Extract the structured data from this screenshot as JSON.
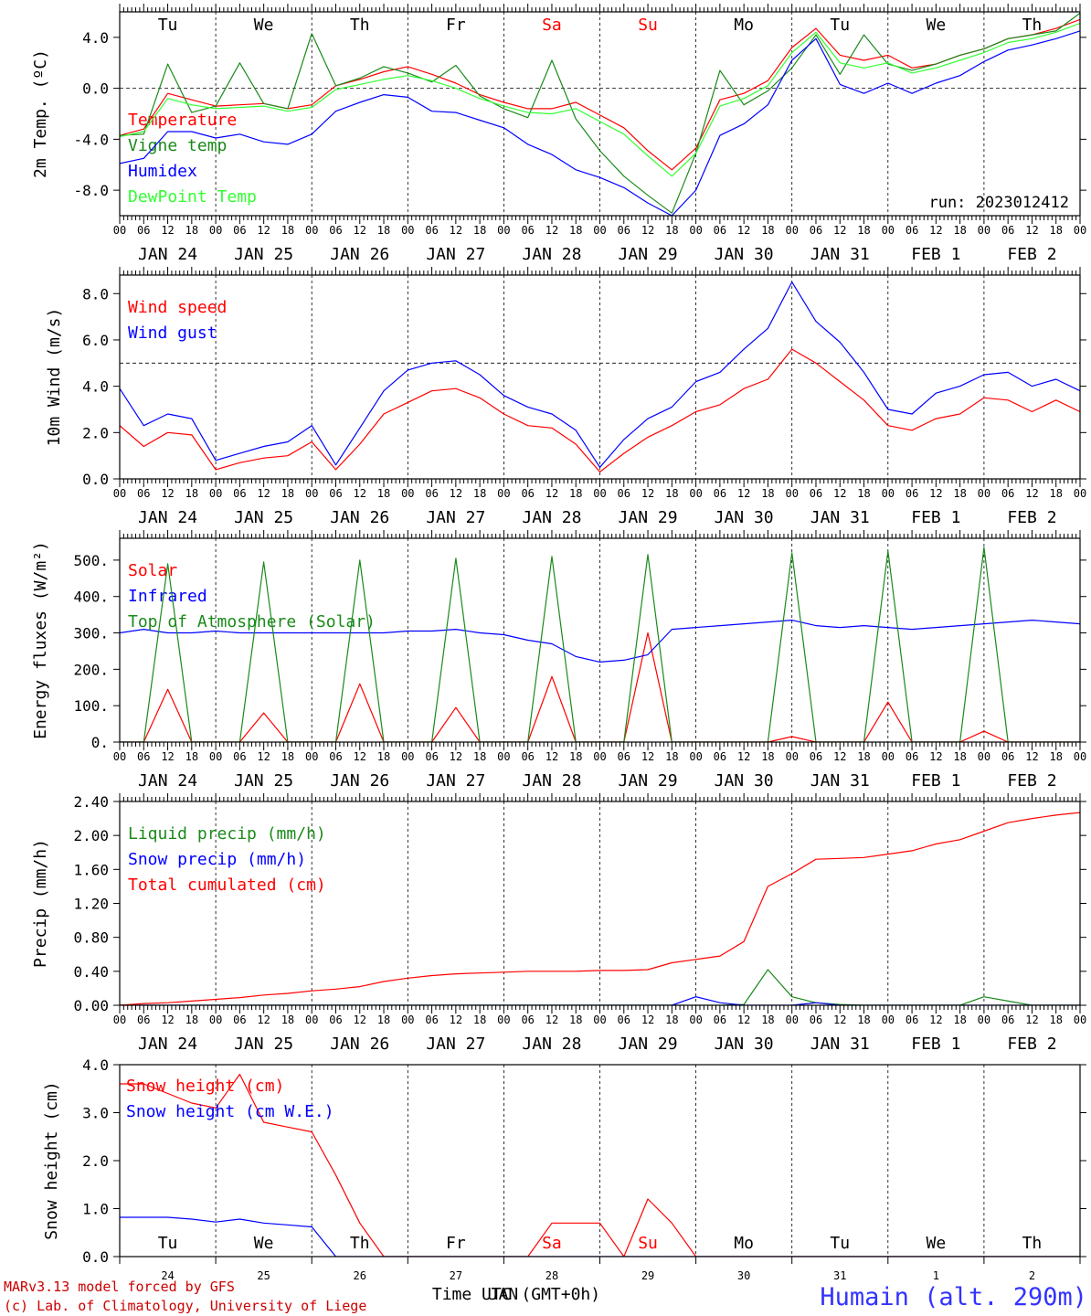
{
  "chart_data": [
    {
      "type": "line",
      "ylabel": "2m Temp. (ºC)",
      "ylim": [
        -10,
        6
      ],
      "yticks": [
        -8,
        -4,
        0,
        4
      ],
      "ytick_labels": [
        "-8.0",
        "-4.0",
        "0.0",
        "4.0"
      ],
      "hline": 0,
      "run_label": "run: 2023012412",
      "day_labels": [
        "Tu",
        "We",
        "Th",
        "Fr",
        "Sa",
        "Su",
        "Mo",
        "Tu",
        "We",
        "Th"
      ],
      "day_colors": [
        "#000000",
        "#000000",
        "#000000",
        "#000000",
        "#ff0000",
        "#ff0000",
        "#000000",
        "#000000",
        "#000000",
        "#000000"
      ],
      "x_hours": [
        0,
        6,
        12,
        18,
        24,
        30,
        36,
        42,
        48,
        54,
        60,
        66,
        72,
        78,
        84,
        90,
        96,
        102,
        108,
        114,
        120,
        126,
        132,
        138,
        144,
        150,
        156,
        162,
        168,
        174,
        180,
        186,
        192,
        198,
        204,
        210,
        216,
        222,
        228,
        234,
        240
      ],
      "series": [
        {
          "name": "Temperature",
          "color": "#ff0000",
          "values": [
            -3.7,
            -3.2,
            -0.4,
            -0.9,
            -1.4,
            -1.3,
            -1.2,
            -1.6,
            -1.3,
            0.2,
            0.7,
            1.3,
            1.7,
            1.1,
            0.4,
            -0.5,
            -1.1,
            -1.6,
            -1.6,
            -1.1,
            -2.1,
            -3.1,
            -4.9,
            -6.4,
            -4.7,
            -0.9,
            -0.4,
            0.6,
            3.2,
            4.7,
            2.6,
            2.2,
            2.6,
            1.6,
            1.9,
            2.6,
            3.1,
            3.9,
            4.2,
            4.7,
            5.4
          ]
        },
        {
          "name": "Vigne temp",
          "color": "#1a8a1a",
          "values": [
            -3.7,
            -3.6,
            1.9,
            -1.9,
            -1.4,
            2.0,
            -1.2,
            -1.6,
            4.3,
            0.2,
            0.8,
            1.7,
            1.2,
            0.5,
            1.8,
            -0.6,
            -1.6,
            -2.3,
            2.2,
            -2.4,
            -4.9,
            -6.9,
            -8.4,
            -9.8,
            -5.1,
            1.4,
            -1.3,
            -0.2,
            1.6,
            4.2,
            1.1,
            4.2,
            1.9,
            1.4,
            1.9,
            2.6,
            3.1,
            3.9,
            4.2,
            4.5,
            5.9
          ]
        },
        {
          "name": "Humidex",
          "color": "#0000ff",
          "values": [
            -5.9,
            -5.5,
            -3.4,
            -3.4,
            -3.9,
            -3.6,
            -4.2,
            -4.4,
            -3.6,
            -1.8,
            -1.1,
            -0.5,
            -0.7,
            -1.8,
            -1.9,
            -2.5,
            -3.1,
            -4.4,
            -5.2,
            -6.4,
            -7.0,
            -7.8,
            -9.0,
            -10.0,
            -8.0,
            -3.7,
            -2.8,
            -1.3,
            2.2,
            3.9,
            0.3,
            -0.4,
            0.4,
            -0.4,
            0.4,
            1.0,
            2.1,
            3.0,
            3.4,
            3.9,
            4.5
          ]
        },
        {
          "name": "DewPoint Temp",
          "color": "#33ff33",
          "values": [
            -3.8,
            -3.4,
            -0.8,
            -1.3,
            -1.6,
            -1.5,
            -1.4,
            -1.8,
            -1.5,
            -0.1,
            0.3,
            0.7,
            1.0,
            0.6,
            0.0,
            -0.8,
            -1.4,
            -1.9,
            -2.0,
            -1.6,
            -2.6,
            -3.6,
            -5.3,
            -6.9,
            -5.1,
            -1.4,
            -0.8,
            0.2,
            2.8,
            4.4,
            2.0,
            1.6,
            2.0,
            1.2,
            1.6,
            2.2,
            2.8,
            3.6,
            3.9,
            4.4,
            5.1
          ]
        }
      ]
    },
    {
      "type": "line",
      "ylabel": "10m Wind (m/s)",
      "ylim": [
        0,
        8.8
      ],
      "yticks": [
        0,
        2,
        4,
        6,
        8
      ],
      "ytick_labels": [
        "0.0",
        "2.0",
        "4.0",
        "6.0",
        "8.0"
      ],
      "hline": 5,
      "x_hours": [
        0,
        6,
        12,
        18,
        24,
        30,
        36,
        42,
        48,
        54,
        60,
        66,
        72,
        78,
        84,
        90,
        96,
        102,
        108,
        114,
        120,
        126,
        132,
        138,
        144,
        150,
        156,
        162,
        168,
        174,
        180,
        186,
        192,
        198,
        204,
        210,
        216,
        222,
        228,
        234,
        240
      ],
      "series": [
        {
          "name": "Wind speed",
          "color": "#ff0000",
          "values": [
            2.3,
            1.4,
            2.0,
            1.9,
            0.4,
            0.7,
            0.9,
            1.0,
            1.6,
            0.4,
            1.5,
            2.8,
            3.3,
            3.8,
            3.9,
            3.5,
            2.8,
            2.3,
            2.2,
            1.5,
            0.3,
            1.1,
            1.8,
            2.3,
            2.9,
            3.2,
            3.9,
            4.3,
            5.6,
            5.0,
            4.2,
            3.4,
            2.3,
            2.1,
            2.6,
            2.8,
            3.5,
            3.4,
            2.9,
            3.4,
            2.9
          ]
        },
        {
          "name": "Wind gust",
          "color": "#0000ff",
          "values": [
            3.9,
            2.3,
            2.8,
            2.6,
            0.8,
            1.1,
            1.4,
            1.6,
            2.3,
            0.6,
            2.2,
            3.8,
            4.7,
            5.0,
            5.1,
            4.5,
            3.6,
            3.1,
            2.8,
            2.1,
            0.5,
            1.7,
            2.6,
            3.1,
            4.2,
            4.6,
            5.6,
            6.5,
            8.5,
            6.8,
            5.9,
            4.6,
            3.0,
            2.8,
            3.7,
            4.0,
            4.5,
            4.6,
            4.0,
            4.3,
            3.8
          ]
        }
      ]
    },
    {
      "type": "line",
      "ylabel": "Energy fluxes (W/m²)",
      "ylim": [
        0,
        560
      ],
      "yticks": [
        0,
        100,
        200,
        300,
        400,
        500
      ],
      "ytick_labels": [
        "0.",
        "100.",
        "200.",
        "300.",
        "400.",
        "500."
      ],
      "x_hours": [
        0,
        6,
        12,
        18,
        24,
        30,
        36,
        42,
        48,
        54,
        60,
        66,
        72,
        78,
        84,
        90,
        96,
        102,
        108,
        114,
        120,
        126,
        132,
        138,
        144,
        150,
        156,
        162,
        168,
        174,
        180,
        186,
        192,
        198,
        204,
        210,
        216,
        222,
        228,
        234,
        240
      ],
      "series": [
        {
          "name": "Solar",
          "color": "#ff0000",
          "values": [
            0,
            0,
            145,
            0,
            0,
            0,
            80,
            0,
            0,
            0,
            160,
            0,
            0,
            0,
            95,
            0,
            0,
            0,
            180,
            0,
            0,
            0,
            300,
            0,
            0,
            0,
            0,
            0,
            15,
            0,
            0,
            0,
            110,
            0,
            0,
            0,
            30,
            0,
            0,
            0,
            0
          ]
        },
        {
          "name": "Infrared",
          "color": "#0000ff",
          "values": [
            300,
            310,
            300,
            300,
            305,
            300,
            300,
            300,
            300,
            300,
            300,
            300,
            305,
            305,
            310,
            300,
            295,
            280,
            270,
            235,
            220,
            225,
            240,
            310,
            315,
            320,
            325,
            330,
            335,
            320,
            315,
            320,
            315,
            310,
            315,
            320,
            325,
            330,
            335,
            330,
            325
          ]
        },
        {
          "name": "Top of Atmosphere (Solar)",
          "color": "#1a8a1a",
          "values": [
            0,
            0,
            490,
            0,
            0,
            0,
            495,
            0,
            0,
            0,
            500,
            0,
            0,
            0,
            505,
            0,
            0,
            0,
            510,
            0,
            0,
            0,
            515,
            0,
            0,
            0,
            0,
            0,
            520,
            0,
            0,
            0,
            525,
            0,
            0,
            0,
            535,
            0,
            0,
            0,
            0
          ]
        }
      ]
    },
    {
      "type": "line",
      "ylabel": "Precip (mm/h)",
      "ylim": [
        0,
        2.4
      ],
      "yticks": [
        0,
        0.4,
        0.8,
        1.2,
        1.6,
        2.0,
        2.4
      ],
      "ytick_labels": [
        "0.00",
        "0.40",
        "0.80",
        "1.20",
        "1.60",
        "2.00",
        "2.40"
      ],
      "x_hours": [
        0,
        6,
        12,
        18,
        24,
        30,
        36,
        42,
        48,
        54,
        60,
        66,
        72,
        78,
        84,
        90,
        96,
        102,
        108,
        114,
        120,
        126,
        132,
        138,
        144,
        150,
        156,
        162,
        168,
        174,
        180,
        186,
        192,
        198,
        204,
        210,
        216,
        222,
        228,
        234,
        240
      ],
      "series": [
        {
          "name": "Liquid precip (mm/h)",
          "color": "#1a8a1a",
          "values": [
            0,
            0,
            0,
            0,
            0,
            0,
            0,
            0,
            0,
            0,
            0,
            0,
            0,
            0,
            0,
            0,
            0,
            0,
            0,
            0,
            0,
            0,
            0,
            0,
            0,
            0,
            0.01,
            0.42,
            0.1,
            0.03,
            0.01,
            0,
            0,
            0,
            0,
            0,
            0.1,
            0.05,
            0,
            0,
            0
          ]
        },
        {
          "name": "Snow precip (mm/h)",
          "color": "#0000ff",
          "values": [
            0,
            0,
            0,
            0,
            0,
            0,
            0,
            0,
            0,
            0,
            0,
            0,
            0,
            0,
            0,
            0,
            0,
            0,
            0,
            0,
            0,
            0,
            0,
            0,
            0.1,
            0.03,
            0,
            0,
            0,
            0.03,
            0,
            0,
            0,
            0,
            0,
            0,
            0,
            0,
            0,
            0,
            0
          ]
        },
        {
          "name": "Total cumulated (cm)",
          "color": "#ff0000",
          "values": [
            0.0,
            0.02,
            0.03,
            0.05,
            0.07,
            0.09,
            0.12,
            0.14,
            0.17,
            0.19,
            0.22,
            0.28,
            0.32,
            0.35,
            0.37,
            0.38,
            0.39,
            0.4,
            0.4,
            0.4,
            0.41,
            0.41,
            0.42,
            0.5,
            0.54,
            0.58,
            0.75,
            1.4,
            1.55,
            1.72,
            1.73,
            1.74,
            1.78,
            1.82,
            1.9,
            1.95,
            2.05,
            2.15,
            2.2,
            2.24,
            2.27
          ]
        }
      ]
    },
    {
      "type": "line",
      "ylabel": "Snow height (cm)",
      "ylim": [
        0,
        4
      ],
      "yticks": [
        0,
        1,
        2,
        3,
        4
      ],
      "ytick_labels": [
        "0.0",
        "1.0",
        "2.0",
        "3.0",
        "4.0"
      ],
      "xlabel": "Time UTC (GMT+0h)",
      "overlap_label": "JAN",
      "day_labels": [
        "Tu",
        "We",
        "Th",
        "Fr",
        "Sa",
        "Su",
        "Mo",
        "Tu",
        "We",
        "Th"
      ],
      "day_colors": [
        "#000000",
        "#000000",
        "#000000",
        "#000000",
        "#ff0000",
        "#ff0000",
        "#000000",
        "#000000",
        "#000000",
        "#000000"
      ],
      "bottom_day_numbers": [
        "24",
        "25",
        "26",
        "27",
        "28",
        "29",
        "30",
        "31",
        "1",
        "2"
      ],
      "x_hours": [
        0,
        6,
        12,
        18,
        24,
        30,
        36,
        42,
        48,
        54,
        60,
        66,
        72,
        78,
        84,
        90,
        96,
        102,
        108,
        114,
        120,
        126,
        132,
        138,
        144,
        150,
        156,
        162,
        168,
        174,
        180,
        186,
        192,
        198,
        204,
        210,
        216,
        222,
        228,
        234,
        240
      ],
      "series": [
        {
          "name": "Snow height (cm)",
          "color": "#ff0000",
          "values": [
            3.6,
            3.6,
            3.4,
            3.2,
            3.1,
            3.8,
            2.8,
            2.7,
            2.6,
            1.7,
            0.7,
            0,
            0,
            0,
            0,
            0,
            0,
            0,
            0.7,
            0.7,
            0.7,
            0,
            1.2,
            0.7,
            0,
            0,
            0,
            0,
            0,
            0,
            0,
            0,
            0,
            0,
            0,
            0,
            0,
            0,
            0,
            0,
            0
          ]
        },
        {
          "name": "Snow height (cm W.E.)",
          "color": "#0000ff",
          "values": [
            0.82,
            0.82,
            0.82,
            0.78,
            0.72,
            0.78,
            0.7,
            0.66,
            0.62,
            0.0,
            0,
            0,
            0,
            0,
            0,
            0,
            0,
            0,
            0,
            0,
            0,
            0,
            0,
            0,
            0,
            0,
            0,
            0,
            0,
            0,
            0,
            0,
            0,
            0,
            0,
            0,
            0,
            0,
            0,
            0,
            0
          ]
        }
      ]
    }
  ],
  "date_axis": {
    "hour_labels": [
      "00",
      "06",
      "12",
      "18"
    ],
    "final_hour_label": "00",
    "date_labels": [
      "JAN 24",
      "JAN 25",
      "JAN 26",
      "JAN 27",
      "JAN 28",
      "JAN 29",
      "JAN 30",
      "JAN 31",
      "FEB  1",
      "FEB  2"
    ]
  },
  "footer": {
    "model_credit": "MARv3.13 model forced by GFS",
    "lab_credit": "(c) Lab. of Climatology, University of Liege",
    "station": "Humain (alt. 290m)"
  },
  "colors": {
    "footer_credit": "#cc0000",
    "station": "#3333ff"
  }
}
